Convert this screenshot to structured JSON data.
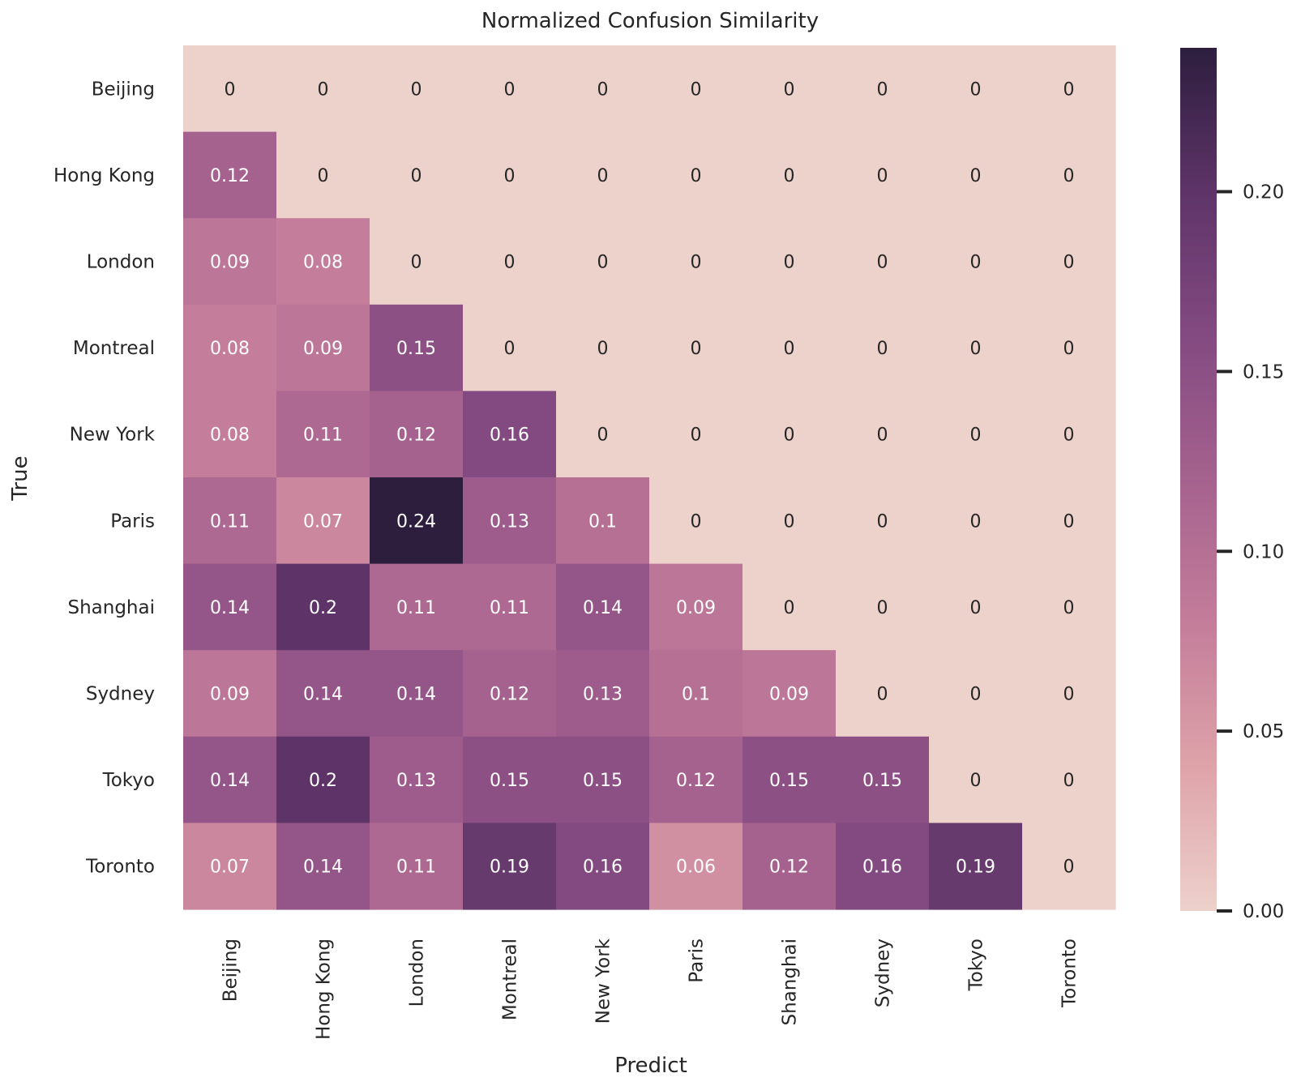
{
  "chart_data": {
    "type": "heatmap",
    "title": "Normalized Confusion Similarity",
    "xlabel": "Predict",
    "ylabel": "True",
    "x_categories": [
      "Beijing",
      "Hong Kong",
      "London",
      "Montreal",
      "New York",
      "Paris",
      "Shanghai",
      "Sydney",
      "Tokyo",
      "Toronto"
    ],
    "y_categories": [
      "Beijing",
      "Hong Kong",
      "London",
      "Montreal",
      "New York",
      "Paris",
      "Shanghai",
      "Sydney",
      "Tokyo",
      "Toronto"
    ],
    "values": [
      [
        0,
        0,
        0,
        0,
        0,
        0,
        0,
        0,
        0,
        0
      ],
      [
        0.12,
        0,
        0,
        0,
        0,
        0,
        0,
        0,
        0,
        0
      ],
      [
        0.09,
        0.08,
        0,
        0,
        0,
        0,
        0,
        0,
        0,
        0
      ],
      [
        0.08,
        0.09,
        0.15,
        0,
        0,
        0,
        0,
        0,
        0,
        0
      ],
      [
        0.08,
        0.11,
        0.12,
        0.16,
        0,
        0,
        0,
        0,
        0,
        0
      ],
      [
        0.11,
        0.07,
        0.24,
        0.13,
        0.1,
        0,
        0,
        0,
        0,
        0
      ],
      [
        0.14,
        0.2,
        0.11,
        0.11,
        0.14,
        0.09,
        0,
        0,
        0,
        0
      ],
      [
        0.09,
        0.14,
        0.14,
        0.12,
        0.13,
        0.1,
        0.09,
        0,
        0,
        0
      ],
      [
        0.14,
        0.2,
        0.13,
        0.15,
        0.15,
        0.12,
        0.15,
        0.15,
        0,
        0
      ],
      [
        0.07,
        0.14,
        0.11,
        0.19,
        0.16,
        0.06,
        0.12,
        0.16,
        0.19,
        0
      ]
    ],
    "colorbar": {
      "vmin": 0,
      "vmax": 0.24,
      "ticks": [
        0.0,
        0.05,
        0.1,
        0.15,
        0.2
      ],
      "tick_labels": [
        "0.00",
        "0.05",
        "0.10",
        "0.15",
        "0.20"
      ],
      "colors_low_to_high": [
        "#edd1cb",
        "#dea3a9",
        "#c47d9a",
        "#a5628e",
        "#834a81",
        "#5e3468",
        "#2d1e3e"
      ]
    }
  }
}
